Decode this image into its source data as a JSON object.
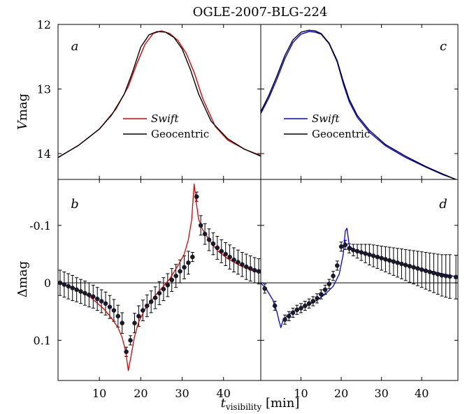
{
  "title": "OGLE-2007-BLG-224",
  "x_axis": {
    "label_main": "t",
    "label_sub": "visibility",
    "label_unit": "[min]",
    "ticks": [
      "10",
      "20",
      "30",
      "40"
    ]
  },
  "colors": {
    "swift_left": "#e00000",
    "swift_right": "#0000ee",
    "geocentric": "#000000",
    "points": "#1a1a2e"
  },
  "chart_data": [
    {
      "panel_label": "a",
      "type": "line",
      "ylabel_main": "V",
      "ylabel_unit": "mag",
      "ytick_labels": [
        "12",
        "13",
        "14"
      ],
      "ylim_inverted": [
        12,
        14.4
      ],
      "xlim": [
        0,
        49
      ],
      "legend": {
        "placement": "lower-center",
        "entries": [
          "Swift",
          "Geocentric"
        ]
      },
      "series": [
        {
          "name": "Swift",
          "color": "#e00000",
          "x": [
            0,
            5,
            10,
            14,
            17,
            19,
            21,
            23,
            25,
            27,
            29,
            31,
            33,
            35,
            38,
            41,
            45,
            49
          ],
          "y": [
            14.06,
            13.87,
            13.62,
            13.31,
            12.96,
            12.62,
            12.31,
            12.14,
            12.1,
            12.14,
            12.25,
            12.45,
            12.76,
            13.15,
            13.58,
            13.79,
            13.93,
            14.03
          ]
        },
        {
          "name": "Geocentric",
          "color": "#000000",
          "x": [
            0,
            5,
            10,
            13,
            16,
            18,
            20,
            22,
            24,
            26,
            28,
            30,
            32,
            34,
            37,
            41,
            45,
            49
          ],
          "y": [
            14.06,
            13.87,
            13.62,
            13.4,
            13.08,
            12.74,
            12.35,
            12.16,
            12.11,
            12.12,
            12.2,
            12.38,
            12.7,
            13.08,
            13.5,
            13.77,
            13.93,
            14.04
          ]
        }
      ]
    },
    {
      "panel_label": "b",
      "type": "line",
      "ylabel_main": "Δ",
      "ylabel_unit": "mag",
      "ytick_labels": [
        "-0.1",
        "0",
        "0.1"
      ],
      "ylim_inverted": [
        -0.18,
        0.17
      ],
      "xlim": [
        0,
        49
      ],
      "model": {
        "color": "#e00000",
        "x": [
          0,
          4,
          8,
          11,
          13,
          14.5,
          15.5,
          16.3,
          17,
          17.7,
          18.5,
          19.5,
          21,
          24,
          27,
          29,
          30.5,
          31.5,
          32.3,
          32.9,
          33.4,
          34,
          35,
          36.5,
          38.5,
          41,
          44,
          47,
          49
        ],
        "y": [
          0.0,
          0.009,
          0.026,
          0.045,
          0.062,
          0.078,
          0.095,
          0.118,
          0.153,
          0.125,
          0.093,
          0.068,
          0.046,
          0.018,
          -0.007,
          -0.03,
          -0.05,
          -0.075,
          -0.11,
          -0.172,
          -0.14,
          -0.11,
          -0.092,
          -0.075,
          -0.056,
          -0.042,
          -0.03,
          -0.021,
          -0.017
        ]
      },
      "points": {
        "x": [
          0.5,
          1.5,
          2.5,
          3.5,
          4.5,
          5.5,
          6.5,
          7.5,
          8.5,
          9.5,
          10.5,
          11.5,
          12.5,
          13.5,
          14.5,
          15.5,
          16.5,
          17.5,
          18.5,
          19.5,
          20.5,
          21.5,
          22.5,
          23.5,
          24.5,
          25.5,
          26.5,
          27.5,
          28.5,
          29.5,
          30.5,
          31.5,
          32.5,
          33.5,
          34.5,
          35.5,
          36.5,
          37.5,
          38.5,
          39.5,
          40.5,
          41.5,
          42.5,
          43.5,
          44.5,
          45.5,
          46.5,
          47.5,
          48.5
        ],
        "y": [
          0.0,
          0.003,
          0.006,
          0.009,
          0.012,
          0.015,
          0.018,
          0.021,
          0.024,
          0.028,
          0.032,
          0.036,
          0.042,
          0.048,
          0.058,
          0.07,
          0.12,
          0.1,
          0.07,
          0.058,
          0.048,
          0.04,
          0.033,
          0.026,
          0.018,
          0.011,
          0.004,
          -0.005,
          -0.012,
          -0.02,
          -0.027,
          -0.035,
          -0.045,
          -0.15,
          -0.1,
          -0.085,
          -0.075,
          -0.068,
          -0.061,
          -0.055,
          -0.05,
          -0.045,
          -0.04,
          -0.036,
          -0.032,
          -0.028,
          -0.025,
          -0.022,
          -0.02
        ],
        "yerr": [
          0.022,
          0.022,
          0.022,
          0.022,
          0.021,
          0.021,
          0.021,
          0.021,
          0.02,
          0.02,
          0.02,
          0.02,
          0.02,
          0.019,
          0.019,
          0.018,
          0.008,
          0.008,
          0.017,
          0.018,
          0.018,
          0.019,
          0.019,
          0.019,
          0.02,
          0.02,
          0.02,
          0.02,
          0.02,
          0.02,
          0.02,
          0.02,
          0.008,
          0.008,
          0.017,
          0.018,
          0.019,
          0.019,
          0.02,
          0.02,
          0.02,
          0.021,
          0.021,
          0.021,
          0.021,
          0.022,
          0.022,
          0.022,
          0.022
        ]
      }
    },
    {
      "panel_label": "c",
      "type": "line",
      "ytick_labels": [],
      "ylim_inverted": [
        12,
        14.4
      ],
      "xlim": [
        0,
        49
      ],
      "legend": {
        "placement": "center-left",
        "entries": [
          "Swift",
          "Geocentric"
        ]
      },
      "series": [
        {
          "name": "Swift",
          "color": "#0000ee",
          "x": [
            0,
            2,
            4,
            6,
            8,
            10,
            12,
            13.5,
            15,
            17,
            19,
            20.5,
            22,
            24,
            27,
            31,
            36,
            41,
            45,
            48.5
          ],
          "y": [
            13.38,
            13.14,
            12.85,
            12.53,
            12.28,
            12.15,
            12.11,
            12.12,
            12.15,
            12.3,
            12.58,
            12.92,
            13.2,
            13.44,
            13.67,
            13.88,
            14.06,
            14.21,
            14.32,
            14.4
          ]
        },
        {
          "name": "Geocentric",
          "color": "#000000",
          "x": [
            0,
            2,
            4,
            6,
            8,
            10,
            12,
            13.5,
            15,
            17,
            19,
            20.5,
            22,
            24,
            27,
            31,
            36,
            41,
            45,
            48.5
          ],
          "y": [
            13.35,
            13.1,
            12.8,
            12.48,
            12.24,
            12.12,
            12.09,
            12.1,
            12.14,
            12.29,
            12.56,
            12.88,
            13.16,
            13.41,
            13.64,
            13.86,
            14.04,
            14.2,
            14.31,
            14.4
          ]
        }
      ]
    },
    {
      "panel_label": "d",
      "type": "line",
      "ytick_labels": [],
      "ylim_inverted": [
        -0.18,
        0.17
      ],
      "xlim": [
        0,
        49
      ],
      "model": {
        "color": "#0000ee",
        "x": [
          0,
          1.5,
          3,
          4,
          4.6,
          5,
          5.5,
          6.5,
          8,
          10,
          12,
          14,
          16,
          18,
          19.5,
          20.5,
          21,
          21.4,
          22,
          23,
          26,
          30,
          35,
          40,
          45,
          49
        ],
        "y": [
          0.0,
          0.012,
          0.03,
          0.05,
          0.068,
          0.078,
          0.066,
          0.058,
          0.05,
          0.044,
          0.038,
          0.03,
          0.02,
          0.006,
          -0.015,
          -0.05,
          -0.09,
          -0.095,
          -0.065,
          -0.058,
          -0.052,
          -0.043,
          -0.033,
          -0.024,
          -0.016,
          -0.01
        ]
      },
      "points": {
        "x": [
          1,
          3.5,
          6,
          7,
          8,
          9,
          10,
          11,
          12,
          13,
          14,
          15,
          16,
          17,
          18,
          19,
          20,
          21,
          22,
          23,
          24,
          25,
          26,
          27,
          28,
          29,
          30,
          31,
          32,
          33,
          34,
          35,
          36,
          37,
          38,
          39,
          40,
          41,
          42,
          43,
          44,
          45,
          46,
          47,
          48.5
        ],
        "y": [
          0.01,
          0.04,
          0.064,
          0.058,
          0.052,
          0.047,
          0.044,
          0.04,
          0.036,
          0.032,
          0.027,
          0.02,
          0.012,
          0.002,
          -0.012,
          -0.03,
          -0.063,
          -0.066,
          -0.06,
          -0.057,
          -0.055,
          -0.053,
          -0.051,
          -0.049,
          -0.047,
          -0.045,
          -0.043,
          -0.041,
          -0.039,
          -0.037,
          -0.035,
          -0.033,
          -0.031,
          -0.029,
          -0.027,
          -0.025,
          -0.023,
          -0.021,
          -0.019,
          -0.017,
          -0.015,
          -0.013,
          -0.012,
          -0.011,
          -0.01
        ],
        "yerr": [
          0.008,
          0.008,
          0.008,
          0.008,
          0.008,
          0.008,
          0.008,
          0.008,
          0.008,
          0.008,
          0.008,
          0.008,
          0.008,
          0.008,
          0.008,
          0.008,
          0.008,
          0.008,
          0.008,
          0.01,
          0.012,
          0.014,
          0.016,
          0.018,
          0.019,
          0.02,
          0.021,
          0.022,
          0.023,
          0.024,
          0.025,
          0.026,
          0.027,
          0.028,
          0.029,
          0.03,
          0.031,
          0.032,
          0.033,
          0.034,
          0.035,
          0.036,
          0.037,
          0.038,
          0.038
        ]
      }
    }
  ]
}
